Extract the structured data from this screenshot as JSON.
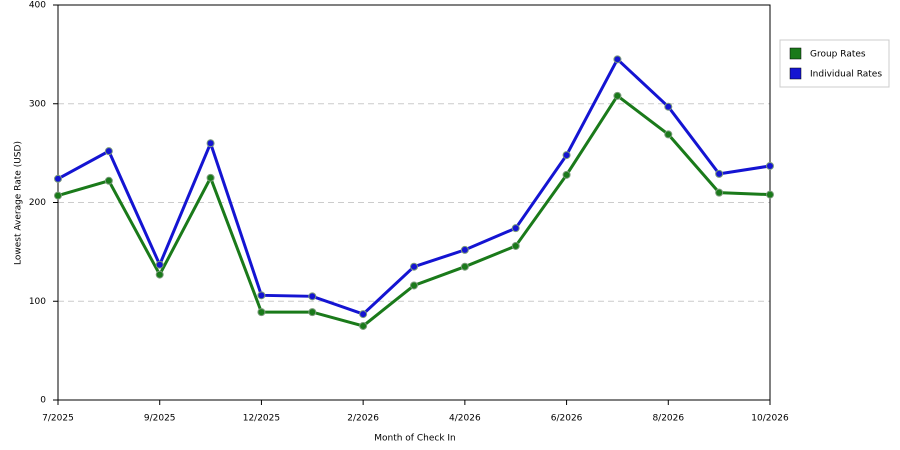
{
  "chart_data": {
    "type": "line",
    "x_label": "Month of Check In",
    "y_label": "Lowest Average Rate (USD)",
    "categories": [
      "7/2025",
      null,
      "9/2025",
      null,
      "12/2025",
      null,
      "2/2026",
      null,
      "4/2026",
      null,
      "6/2026",
      null,
      "8/2026",
      null,
      "10/2026"
    ],
    "series": [
      {
        "name": "Group Rates",
        "color": "#1a7a1a",
        "values": [
          207,
          222,
          127,
          225,
          89,
          89,
          75,
          116,
          135,
          156,
          228,
          308,
          269,
          210,
          208
        ]
      },
      {
        "name": "Individual Rates",
        "color": "#1414d2",
        "values": [
          224,
          252,
          137,
          260,
          106,
          105,
          87,
          135,
          152,
          174,
          248,
          345,
          297,
          229,
          237
        ]
      }
    ],
    "ylim": [
      0,
      400
    ],
    "yticks": [
      0,
      100,
      200,
      300,
      400
    ],
    "grid": true,
    "legend": "right"
  }
}
